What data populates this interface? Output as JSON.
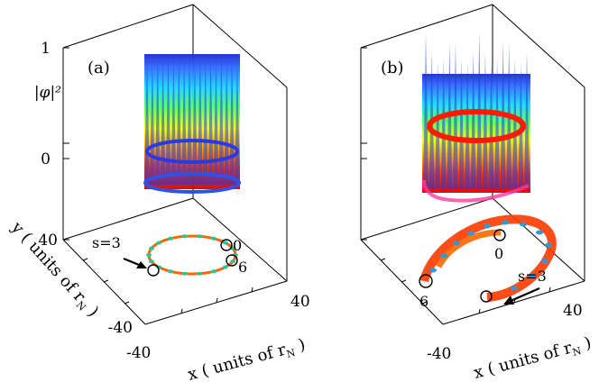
{
  "chart_data": [
    {
      "type": "surface",
      "panel_label": "(a)",
      "zlabel": "|φ|²",
      "z_ticks": [
        "1",
        "0"
      ],
      "xlabel": "x ( units of r",
      "xlabel_sub": "N",
      "xlabel_end": " )",
      "ylabel": "y ( units of r",
      "ylabel_sub": "N",
      "ylabel_end": " )",
      "x_ticks": [
        "-40",
        "40"
      ],
      "y_ticks": [
        "40",
        "-40"
      ],
      "xlim": [
        -40,
        40
      ],
      "ylim": [
        -40,
        40
      ],
      "zlim": [
        0,
        1
      ],
      "ring": {
        "peaks": 18,
        "radius": 20,
        "shape": "circle"
      },
      "annotations": [
        {
          "text": "s=3"
        },
        {
          "text": "0"
        },
        {
          "text": "6"
        }
      ]
    },
    {
      "type": "surface",
      "panel_label": "(b)",
      "xlabel": "x ( units of r",
      "xlabel_sub": "N",
      "xlabel_end": " )",
      "x_ticks": [
        "-40",
        "40"
      ],
      "xlim": [
        -40,
        40
      ],
      "ylim": [
        -40,
        40
      ],
      "zlim": [
        0,
        1
      ],
      "ring": {
        "peaks": 18,
        "shape": "spiral"
      },
      "annotations": [
        {
          "text": "0"
        },
        {
          "text": "s=3"
        },
        {
          "text": "6"
        }
      ]
    }
  ]
}
